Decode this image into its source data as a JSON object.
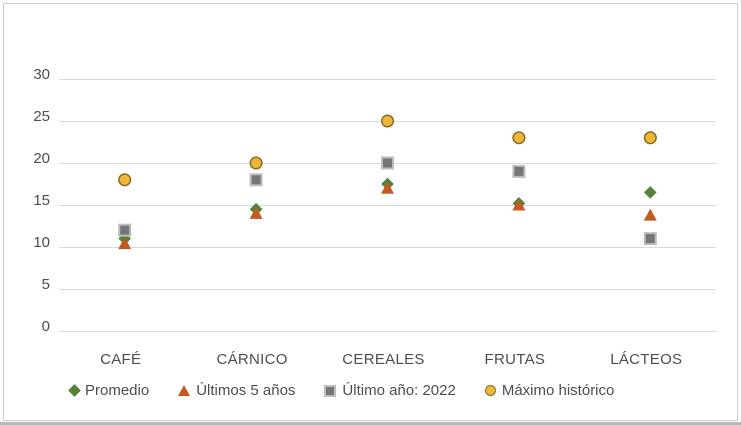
{
  "chart_data": {
    "type": "scatter",
    "title": "",
    "categories": [
      "CAFÉ",
      "CÁRNICO",
      "CEREALES",
      "FRUTAS",
      "LÁCTEOS"
    ],
    "series": [
      {
        "name": "Promedio",
        "marker": "diamond",
        "fill": "#54823B",
        "stroke": "#54823B",
        "values": [
          11,
          14.5,
          17.5,
          15.2,
          16.5
        ]
      },
      {
        "name": "Últimos 5 años",
        "marker": "triangle",
        "fill": "#C45A21",
        "stroke": "#C45A21",
        "values": [
          10.4,
          14,
          17,
          15,
          13.8
        ]
      },
      {
        "name": "Último año: 2022",
        "marker": "square",
        "fill": "#757575",
        "stroke": "#BDBDBD",
        "values": [
          12,
          18,
          20,
          19,
          11
        ]
      },
      {
        "name": "Máximo histórico",
        "marker": "circle",
        "fill": "#EDB73C",
        "stroke": "#8C6D1E",
        "values": [
          18,
          20,
          25,
          23,
          23
        ]
      }
    ],
    "ylim": [
      0,
      30
    ],
    "yticks": [
      0,
      5,
      10,
      15,
      20,
      25,
      30
    ],
    "grid": true,
    "gridline_color": "#d9d9d9",
    "text_color": "#4d4d4d",
    "legend_position": "bottom",
    "xlabel": "",
    "ylabel": ""
  }
}
